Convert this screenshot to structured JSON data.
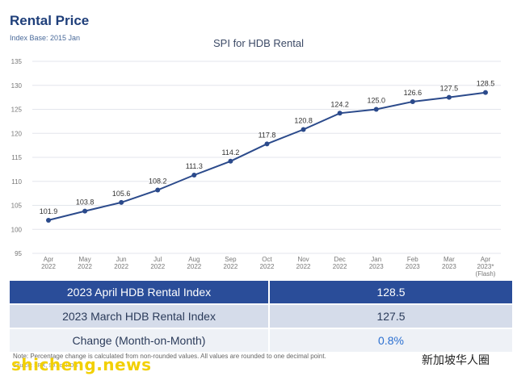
{
  "header": {
    "title": "Rental Price",
    "subtitle": "Index Base: 2015 Jan"
  },
  "chart_data": {
    "type": "line",
    "title": "SPI for HDB Rental",
    "categories": [
      [
        "Apr",
        "2022"
      ],
      [
        "May",
        "2022"
      ],
      [
        "Jun",
        "2022"
      ],
      [
        "Jul",
        "2022"
      ],
      [
        "Aug",
        "2022"
      ],
      [
        "Sep",
        "2022"
      ],
      [
        "Oct",
        "2022"
      ],
      [
        "Nov",
        "2022"
      ],
      [
        "Dec",
        "2022"
      ],
      [
        "Jan",
        "2023"
      ],
      [
        "Feb",
        "2023"
      ],
      [
        "Mar",
        "2023"
      ],
      [
        "Apr",
        "2023*",
        "(Flash)"
      ]
    ],
    "series": [
      {
        "values": [
          101.9,
          103.8,
          105.6,
          108.2,
          111.3,
          114.2,
          117.8,
          120.8,
          124.2,
          125.0,
          126.6,
          127.5,
          128.5
        ],
        "labels": [
          "101.9",
          "103.8",
          "105.6",
          "108.2",
          "111.3",
          "114.2",
          "117.8",
          "120.8",
          "124.2",
          "125.0",
          "126.6",
          "127.5",
          "128.5"
        ]
      }
    ],
    "ylim": [
      95,
      135
    ],
    "yticks": [
      95,
      100,
      105,
      110,
      115,
      120,
      125,
      130,
      135
    ],
    "grid": true,
    "colors": {
      "line": "#2b4a8b",
      "grid": "#e3e6ec"
    }
  },
  "table": {
    "rows": [
      {
        "label": "2023 April HDB Rental Index",
        "value": "128.5"
      },
      {
        "label": "2023 March HDB Rental Index",
        "value": "127.5"
      },
      {
        "label": "Change (Month-on-Month)",
        "value": "0.8%"
      }
    ]
  },
  "footer": {
    "note": "Note: Percentage change is calculated from non-rounded values. All values are rounded to one decimal point.",
    "source": "Source: SRX, 99.co, HDB"
  },
  "watermarks": {
    "left": "shicheng.news",
    "right": "新加坡华人圈"
  }
}
